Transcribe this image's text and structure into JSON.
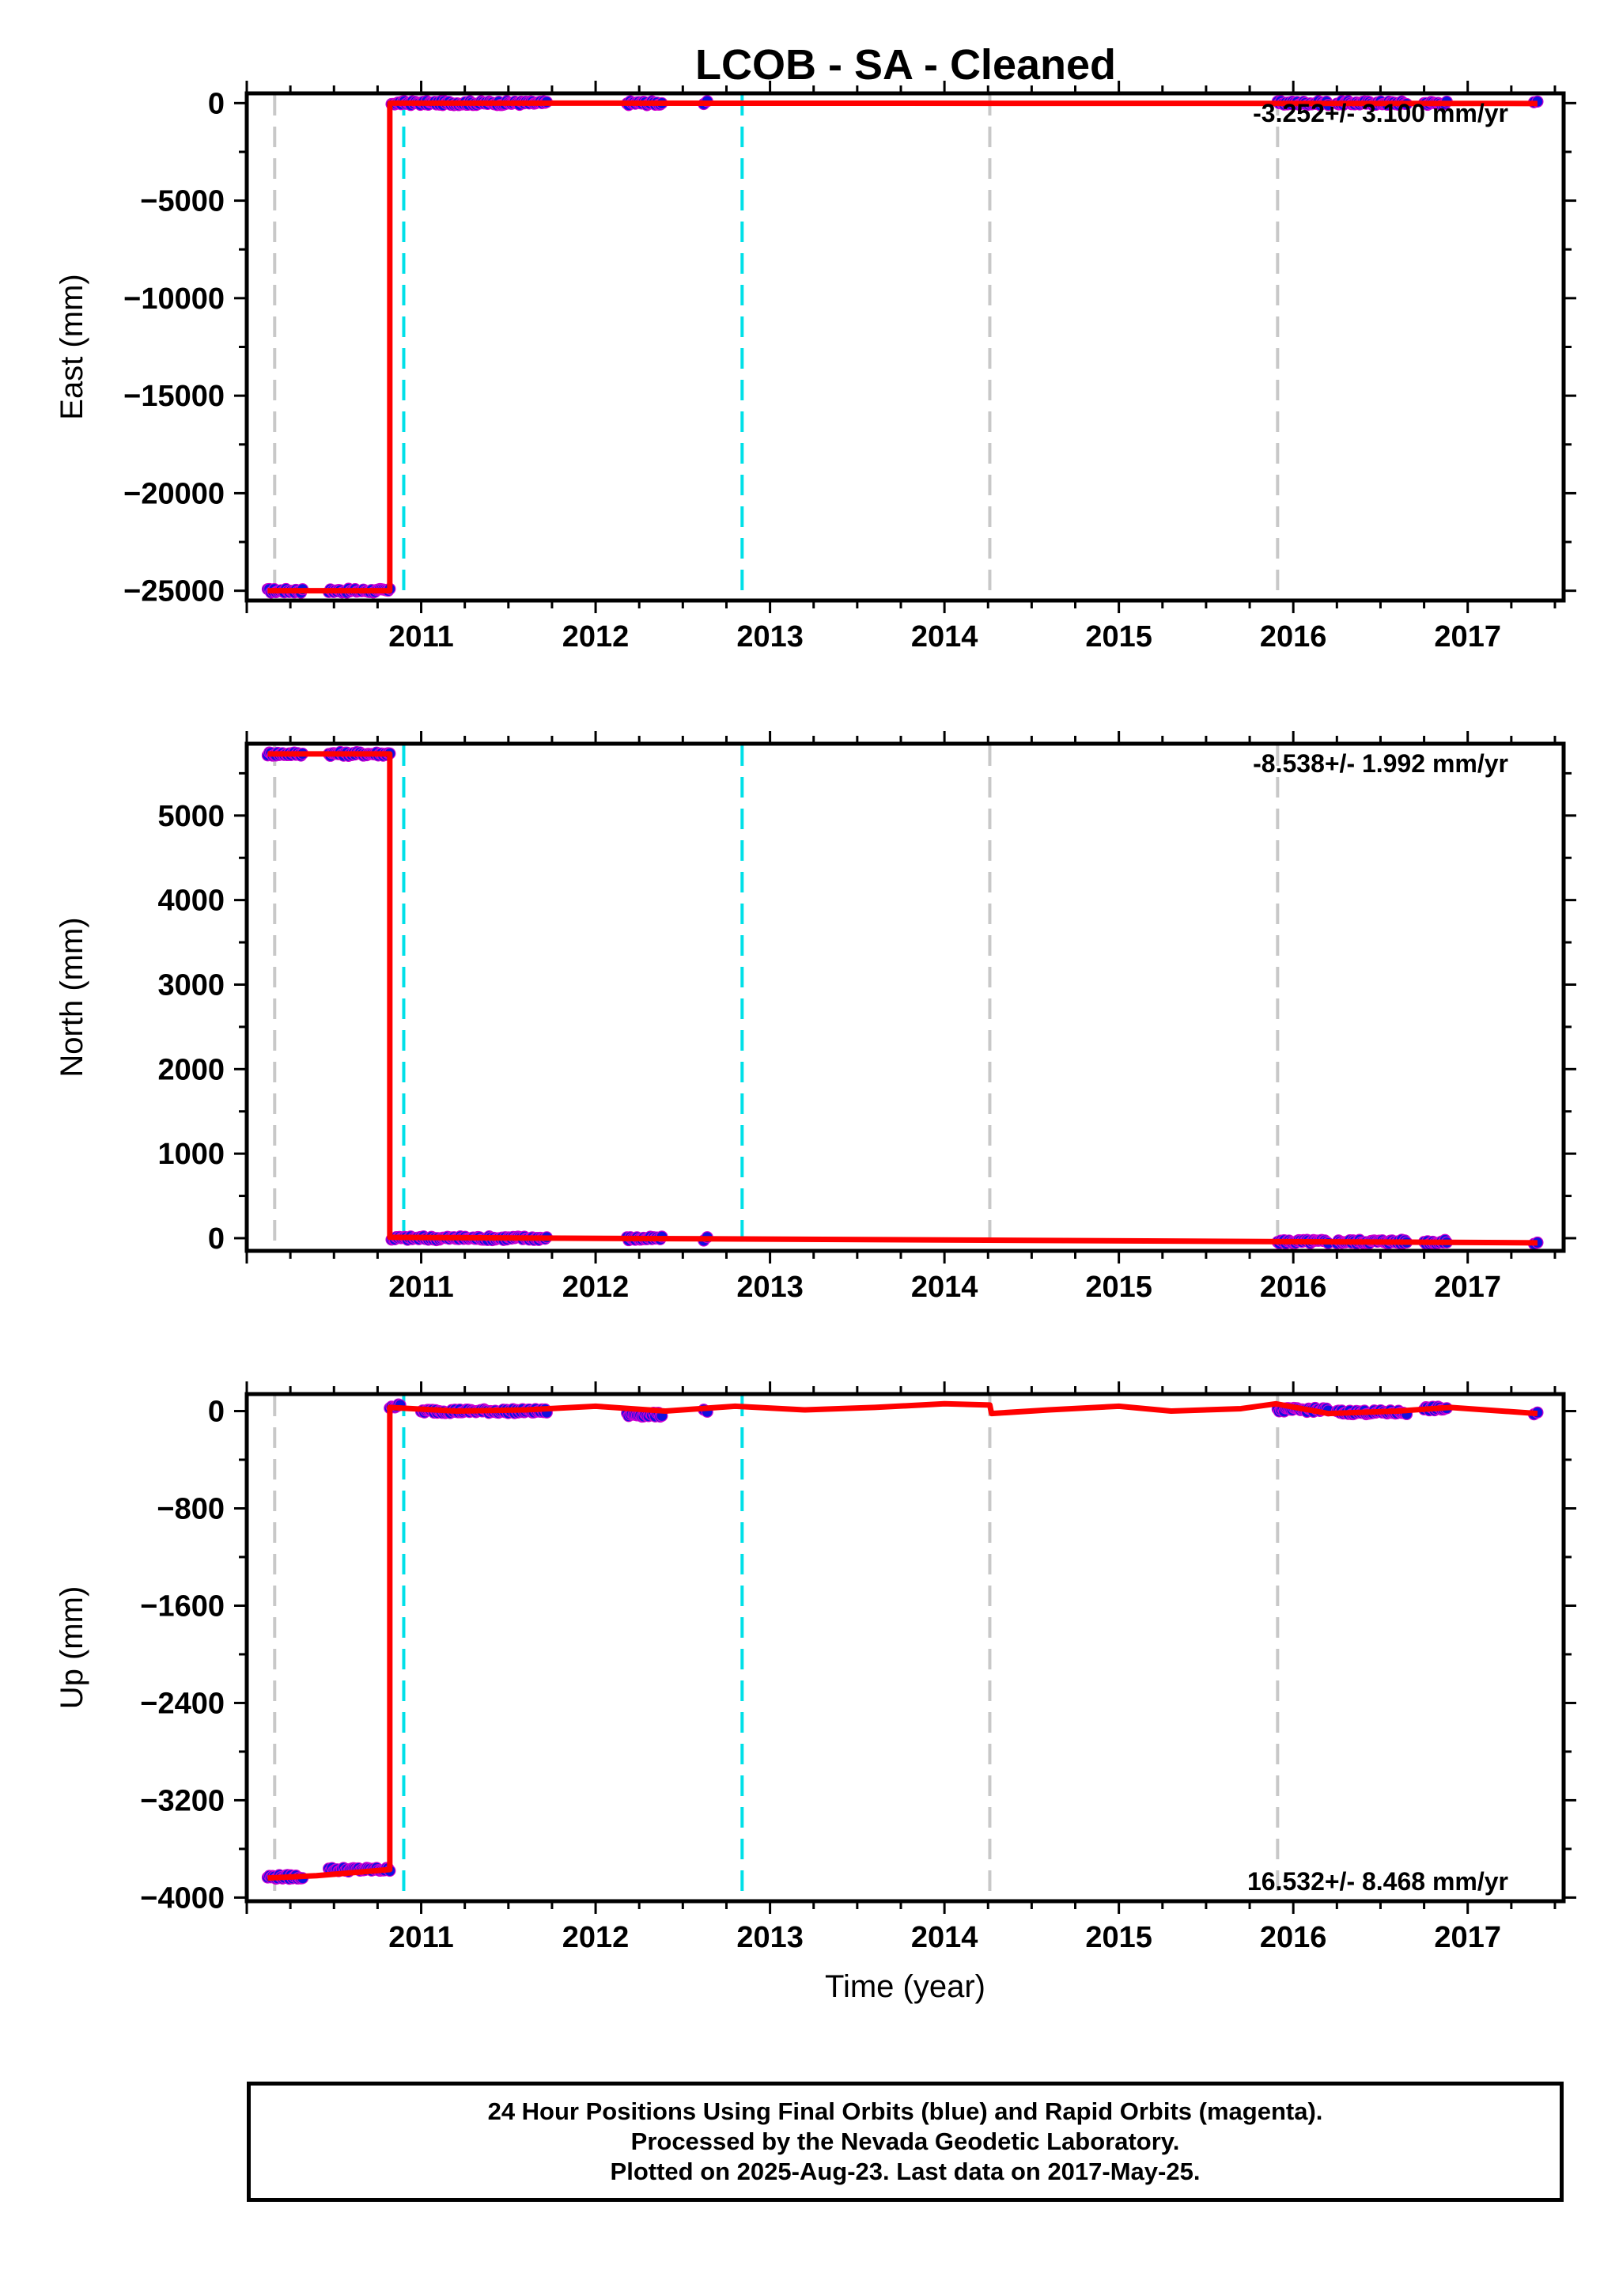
{
  "title": "LCOB  - SA - Cleaned",
  "footer": {
    "line1": "24 Hour Positions Using Final Orbits (blue) and Rapid Orbits (magenta).",
    "line2": "Processed by the Nevada Geodetic Laboratory.",
    "line3": "Plotted on 2025-Aug-23. Last data on 2017-May-25."
  },
  "colors": {
    "final_orbits": "#1010e0",
    "rapid_orbits": "#d000d0",
    "model": "#ff0000",
    "equipment_change": "#c8c8c8",
    "earthquake": "#00e0e8"
  },
  "chart_data": [
    {
      "type": "scatter",
      "name": "east",
      "ylabel": "East (mm)",
      "rate": "-3.252+/- 3.100 mm/yr",
      "xlim": [
        2010.0,
        2017.55
      ],
      "ylim": [
        -25500,
        500
      ],
      "xticks": [
        2011,
        2012,
        2013,
        2014,
        2015,
        2016,
        2017
      ],
      "yticks": [
        0,
        -5000,
        -10000,
        -15000,
        -20000,
        -25000
      ],
      "vlines_gray": [
        2010.16,
        2014.26,
        2015.91
      ],
      "vlines_cyan": [
        2010.9,
        2012.84
      ],
      "segments": [
        {
          "x0": 2010.12,
          "x1": 2010.32,
          "y": -25000
        },
        {
          "x0": 2010.47,
          "x1": 2010.82,
          "y": -25000
        },
        {
          "x0": 2010.83,
          "x1": 2011.72,
          "y": 0
        },
        {
          "x0": 2012.18,
          "x1": 2012.38,
          "y": 0
        },
        {
          "x0": 2012.62,
          "x1": 2012.64,
          "y": 0
        },
        {
          "x0": 2015.91,
          "x1": 2016.2,
          "y": 0
        },
        {
          "x0": 2016.25,
          "x1": 2016.65,
          "y": 0
        },
        {
          "x0": 2016.75,
          "x1": 2016.88,
          "y": 0
        },
        {
          "x0": 2017.38,
          "x1": 2017.4,
          "y": 0
        }
      ],
      "model": [
        [
          2010.12,
          -25000
        ],
        [
          2010.82,
          -25000
        ],
        [
          2010.82,
          0
        ],
        [
          2017.4,
          -20
        ]
      ]
    },
    {
      "type": "scatter",
      "name": "north",
      "ylabel": "North (mm)",
      "rate": "-8.538+/- 1.992 mm/yr",
      "xlim": [
        2010.0,
        2017.55
      ],
      "ylim": [
        -150,
        5850
      ],
      "xticks": [
        2011,
        2012,
        2013,
        2014,
        2015,
        2016,
        2017
      ],
      "yticks": [
        0,
        1000,
        2000,
        3000,
        4000,
        5000
      ],
      "vlines_gray": [
        2010.16,
        2014.26,
        2015.91
      ],
      "vlines_cyan": [
        2010.9,
        2012.84
      ],
      "segments": [
        {
          "x0": 2010.12,
          "x1": 2010.32,
          "y": 5730
        },
        {
          "x0": 2010.47,
          "x1": 2010.82,
          "y": 5730
        },
        {
          "x0": 2010.83,
          "x1": 2011.72,
          "y": 0
        },
        {
          "x0": 2012.18,
          "x1": 2012.38,
          "y": -5
        },
        {
          "x0": 2012.62,
          "x1": 2012.64,
          "y": -10
        },
        {
          "x0": 2015.91,
          "x1": 2016.2,
          "y": -40
        },
        {
          "x0": 2016.25,
          "x1": 2016.65,
          "y": -40
        },
        {
          "x0": 2016.75,
          "x1": 2016.88,
          "y": -45
        },
        {
          "x0": 2017.38,
          "x1": 2017.4,
          "y": -50
        }
      ],
      "model": [
        [
          2010.12,
          5730
        ],
        [
          2010.82,
          5730
        ],
        [
          2010.82,
          10
        ],
        [
          2017.4,
          -55
        ]
      ]
    },
    {
      "type": "scatter",
      "name": "up",
      "ylabel": "Up (mm)",
      "rate": "16.532+/- 8.468 mm/yr",
      "xlim": [
        2010.0,
        2017.55
      ],
      "ylim": [
        -4030,
        140
      ],
      "xticks": [
        2011,
        2012,
        2013,
        2014,
        2015,
        2016,
        2017
      ],
      "yticks": [
        0,
        -800,
        -1600,
        -2400,
        -3200,
        -4000
      ],
      "vlines_gray": [
        2010.16,
        2014.26,
        2015.91
      ],
      "vlines_cyan": [
        2010.9,
        2012.84
      ],
      "segments": [
        {
          "x0": 2010.12,
          "x1": 2010.32,
          "y": -3830
        },
        {
          "x0": 2010.47,
          "x1": 2010.82,
          "y": -3770
        },
        {
          "x0": 2010.82,
          "x1": 2010.88,
          "y": 40
        },
        {
          "x0": 2011.0,
          "x1": 2011.72,
          "y": 0
        },
        {
          "x0": 2012.18,
          "x1": 2012.38,
          "y": -30
        },
        {
          "x0": 2012.62,
          "x1": 2012.64,
          "y": 10
        },
        {
          "x0": 2015.91,
          "x1": 2016.2,
          "y": 10
        },
        {
          "x0": 2016.25,
          "x1": 2016.65,
          "y": -10
        },
        {
          "x0": 2016.75,
          "x1": 2016.88,
          "y": 20
        },
        {
          "x0": 2017.38,
          "x1": 2017.4,
          "y": -20
        }
      ],
      "model": [
        [
          2010.12,
          -3840
        ],
        [
          2010.4,
          -3820
        ],
        [
          2010.82,
          -3770
        ],
        [
          2010.82,
          30
        ],
        [
          2011.2,
          0
        ],
        [
          2011.6,
          10
        ],
        [
          2012.0,
          40
        ],
        [
          2012.4,
          0
        ],
        [
          2012.8,
          40
        ],
        [
          2013.2,
          10
        ],
        [
          2013.6,
          30
        ],
        [
          2014.0,
          60
        ],
        [
          2014.26,
          50
        ],
        [
          2014.27,
          -20
        ],
        [
          2014.6,
          10
        ],
        [
          2015.0,
          40
        ],
        [
          2015.3,
          0
        ],
        [
          2015.7,
          20
        ],
        [
          2015.9,
          60
        ],
        [
          2016.2,
          -20
        ],
        [
          2016.6,
          0
        ],
        [
          2016.9,
          30
        ],
        [
          2017.4,
          -20
        ]
      ]
    }
  ]
}
